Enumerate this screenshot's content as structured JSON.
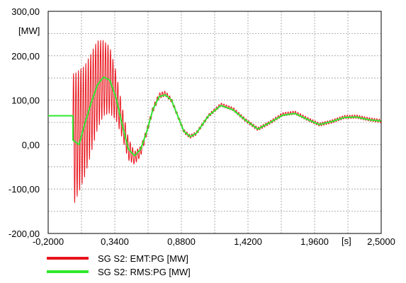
{
  "chart_data": {
    "type": "line",
    "title": "",
    "xlabel": "",
    "ylabel": "",
    "x_unit": "[s]",
    "y_unit": "[MW]",
    "xlim": [
      -0.2,
      2.5
    ],
    "ylim": [
      -200,
      300
    ],
    "x_ticks": [
      -0.2,
      0.34,
      0.88,
      1.42,
      1.96,
      2.5
    ],
    "x_tick_labels": [
      "-0,2000",
      "0,3400",
      "0,8800",
      "1,4200",
      "1,9600",
      "2,5000"
    ],
    "x_minor_grid": [
      0.07,
      0.61,
      1.15,
      1.69,
      2.23
    ],
    "y_ticks": [
      -200,
      -100,
      0,
      100,
      200,
      300
    ],
    "y_tick_labels": [
      "-200,00",
      "-100,00",
      "0,00",
      "100,00",
      "200,00",
      "300,00"
    ],
    "y_minor_grid": [
      -150,
      -50,
      50,
      150,
      250
    ],
    "grid": true,
    "legend_position": "bottom-left",
    "series": [
      {
        "name": "SG S2: EMT:PG [MW]",
        "color": "#e8141c",
        "description": "oscillating active power with large high-frequency component after fault",
        "x": [
          -0.2,
          0.0,
          0.001,
          0.05,
          0.1,
          0.15,
          0.2,
          0.25,
          0.3,
          0.35,
          0.4,
          0.45,
          0.5,
          0.55,
          0.6,
          0.65,
          0.7,
          0.75,
          0.8,
          0.85,
          0.9,
          0.95,
          1.0,
          1.05,
          1.1,
          1.2,
          1.3,
          1.4,
          1.5,
          1.6,
          1.7,
          1.8,
          1.9,
          2.0,
          2.1,
          2.2,
          2.3,
          2.4,
          2.5
        ],
        "y": [
          65,
          65,
          10,
          30,
          55,
          95,
          135,
          150,
          145,
          110,
          50,
          -10,
          -30,
          -15,
          30,
          80,
          110,
          115,
          100,
          65,
          30,
          18,
          25,
          45,
          65,
          90,
          80,
          55,
          35,
          50,
          68,
          72,
          58,
          45,
          52,
          62,
          63,
          57,
          53
        ],
        "hf_envelope": {
          "x": [
            0.0,
            0.1,
            0.2,
            0.25,
            0.3,
            0.35,
            0.4,
            0.5,
            0.6,
            0.8,
            1.0,
            1.5,
            2.0,
            2.5
          ],
          "amplitude": [
            150,
            125,
            100,
            85,
            75,
            55,
            35,
            15,
            8,
            5,
            4,
            4,
            4,
            4
          ]
        }
      },
      {
        "name": "SG S2: RMS:PG [MW]",
        "color": "#2ee82e",
        "description": "smooth RMS active power",
        "x": [
          -0.2,
          0.0,
          0.001,
          0.05,
          0.1,
          0.15,
          0.2,
          0.25,
          0.3,
          0.35,
          0.4,
          0.45,
          0.5,
          0.55,
          0.6,
          0.65,
          0.7,
          0.75,
          0.8,
          0.85,
          0.9,
          0.95,
          1.0,
          1.05,
          1.1,
          1.2,
          1.3,
          1.4,
          1.5,
          1.6,
          1.7,
          1.8,
          1.9,
          2.0,
          2.1,
          2.2,
          2.3,
          2.4,
          2.5
        ],
        "y": [
          65,
          65,
          10,
          0,
          50,
          95,
          135,
          152,
          145,
          105,
          45,
          -10,
          -25,
          -10,
          30,
          80,
          108,
          112,
          100,
          65,
          30,
          18,
          25,
          45,
          65,
          88,
          78,
          55,
          35,
          50,
          66,
          70,
          57,
          45,
          52,
          61,
          62,
          56,
          53
        ]
      }
    ]
  }
}
